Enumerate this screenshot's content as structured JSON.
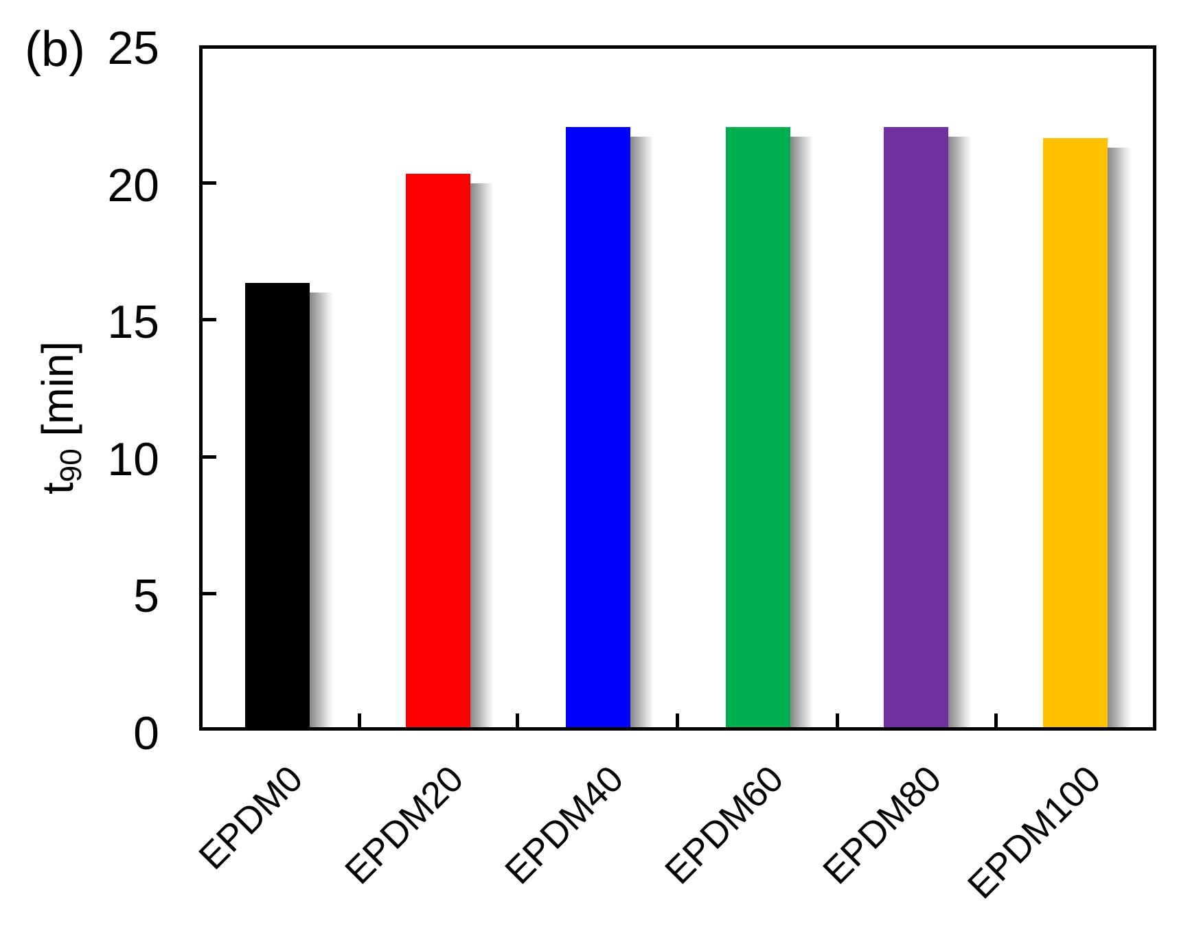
{
  "chart_data": {
    "type": "bar",
    "title": "",
    "panel_label": "(b)",
    "xlabel": "",
    "ylabel": "t90 [min]",
    "ylabel_main": "t",
    "ylabel_sub": "90",
    "ylabel_unit": " [min]",
    "ylim": [
      0,
      25
    ],
    "yticks": [
      0,
      5,
      10,
      15,
      20,
      25
    ],
    "ytick_labels": [
      "0",
      "5",
      "10",
      "15",
      "20",
      "25"
    ],
    "categories": [
      "EPDM0",
      "EPDM20",
      "EPDM40",
      "EPDM60",
      "EPDM80",
      "EPDM100"
    ],
    "values": [
      16.2,
      20.2,
      21.9,
      21.9,
      21.9,
      21.5
    ],
    "colors": [
      "#000000",
      "#ff0000",
      "#0000ff",
      "#00ad4f",
      "#7030a0",
      "#ffc000"
    ],
    "grid": false,
    "legend": false
  }
}
